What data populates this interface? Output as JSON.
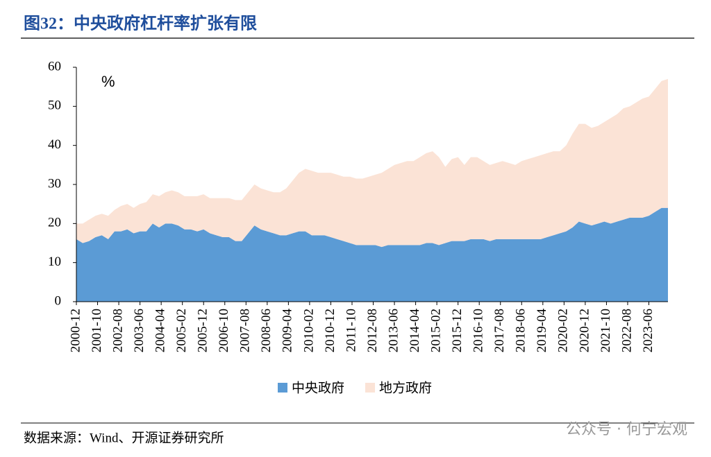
{
  "chart_data": {
    "type": "area",
    "title": "图32：中央政府杠杆率扩张有限",
    "y_unit_label": "%",
    "source": "数据来源：Wind、开源证券研究所",
    "watermark": "公众号 · 何宁宏观",
    "stacked": true,
    "x": [
      "2000-12",
      "2001-03",
      "2001-06",
      "2001-09",
      "2001-12",
      "2002-03",
      "2002-06",
      "2002-09",
      "2002-12",
      "2003-03",
      "2003-06",
      "2003-09",
      "2003-12",
      "2004-03",
      "2004-06",
      "2004-09",
      "2004-12",
      "2005-03",
      "2005-06",
      "2005-09",
      "2005-12",
      "2006-03",
      "2006-06",
      "2006-09",
      "2006-12",
      "2007-03",
      "2007-06",
      "2007-09",
      "2007-12",
      "2008-03",
      "2008-06",
      "2008-09",
      "2008-12",
      "2009-03",
      "2009-06",
      "2009-09",
      "2009-12",
      "2010-03",
      "2010-06",
      "2010-09",
      "2010-12",
      "2011-03",
      "2011-06",
      "2011-09",
      "2011-12",
      "2012-03",
      "2012-06",
      "2012-09",
      "2012-12",
      "2013-03",
      "2013-06",
      "2013-09",
      "2013-12",
      "2014-03",
      "2014-06",
      "2014-09",
      "2014-12",
      "2015-03",
      "2015-06",
      "2015-09",
      "2015-12",
      "2016-03",
      "2016-06",
      "2016-09",
      "2016-12",
      "2017-03",
      "2017-06",
      "2017-09",
      "2017-12",
      "2018-03",
      "2018-06",
      "2018-09",
      "2018-12",
      "2019-03",
      "2019-06",
      "2019-09",
      "2019-12",
      "2020-03",
      "2020-06",
      "2020-09",
      "2020-12",
      "2021-03",
      "2021-06",
      "2021-09",
      "2021-12",
      "2022-03",
      "2022-06",
      "2022-09",
      "2022-12",
      "2023-03",
      "2023-06",
      "2023-09",
      "2023-12",
      "2024-03"
    ],
    "xticks": [
      "2000-12",
      "2001-10",
      "2002-08",
      "2003-06",
      "2004-04",
      "2005-02",
      "2005-12",
      "2006-10",
      "2007-08",
      "2008-06",
      "2009-04",
      "2010-02",
      "2010-12",
      "2011-10",
      "2012-08",
      "2013-06",
      "2014-04",
      "2015-02",
      "2015-12",
      "2016-10",
      "2017-08",
      "2018-06",
      "2019-04",
      "2020-02",
      "2020-12",
      "2021-10",
      "2022-08",
      "2023-06"
    ],
    "series": [
      {
        "name": "中央政府",
        "color": "#5b9bd5",
        "values": [
          16,
          15,
          15.5,
          16.5,
          17,
          16,
          18,
          18,
          18.5,
          17.5,
          18,
          18,
          20,
          19,
          20,
          20,
          19.5,
          18.5,
          18.5,
          18,
          18.5,
          17.5,
          17,
          16.5,
          16.5,
          15.5,
          15.5,
          17.5,
          19.5,
          18.5,
          18,
          17.5,
          17,
          17,
          17.5,
          18,
          18,
          17,
          17,
          17,
          16.5,
          16,
          15.5,
          15,
          14.5,
          14.5,
          14.5,
          14.5,
          14,
          14.5,
          14.5,
          14.5,
          14.5,
          14.5,
          14.5,
          15,
          15,
          14.5,
          15,
          15.5,
          15.5,
          15.5,
          16,
          16,
          16,
          15.5,
          16,
          16,
          16,
          16,
          16,
          16,
          16,
          16,
          16.5,
          17,
          17.5,
          18,
          19,
          20.5,
          20,
          19.5,
          20,
          20.5,
          20,
          20.5,
          21,
          21.5,
          21.5,
          21.5,
          22,
          23,
          24,
          24
        ]
      },
      {
        "name": "地方政府",
        "color": "#fbe3d6",
        "values": [
          4,
          5,
          5.5,
          5.5,
          5.5,
          6,
          5.5,
          6.5,
          6.5,
          6.5,
          7,
          7.5,
          7.5,
          8,
          8,
          8.5,
          8.5,
          8.5,
          8.5,
          9,
          9,
          9,
          9.5,
          10,
          10,
          10.5,
          10.5,
          10.5,
          10.5,
          10.5,
          10.5,
          10.5,
          11,
          12,
          13.5,
          15,
          16,
          16.5,
          16,
          16,
          16.5,
          16.5,
          16.5,
          17,
          17,
          17,
          17.5,
          18,
          19,
          19.5,
          20.5,
          21,
          21.5,
          21.5,
          22.5,
          23,
          23.5,
          22.5,
          19.5,
          21,
          21.5,
          19.5,
          21,
          21,
          20,
          19.5,
          19.5,
          20,
          19.5,
          19,
          20,
          20.5,
          21,
          21.5,
          21.5,
          21.5,
          21,
          22,
          24,
          25,
          25.5,
          25,
          25,
          25.5,
          27,
          27.5,
          28.5,
          28.5,
          29.5,
          30.5,
          30.5,
          31.5,
          32.5,
          33
        ]
      }
    ],
    "ylim": [
      0,
      60
    ],
    "yticks": [
      0,
      10,
      20,
      30,
      40,
      50,
      60
    ],
    "legend": "bottom"
  }
}
